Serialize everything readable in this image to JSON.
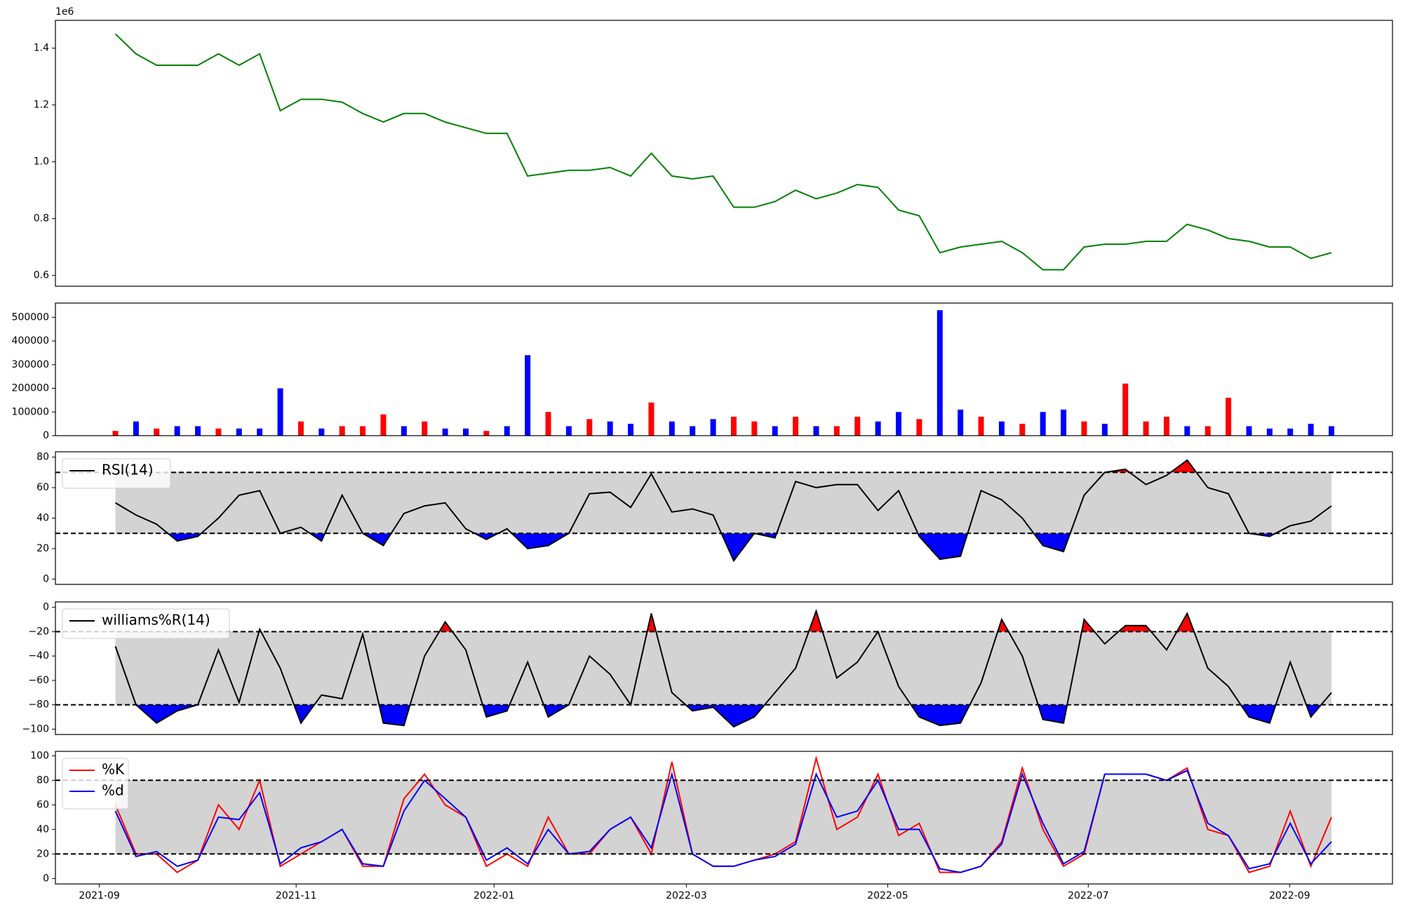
{
  "chart_data": [
    {
      "type": "line",
      "offset_label": "1e6",
      "ylim": [
        0.562,
        1.498
      ],
      "yticks": [
        0.6,
        0.8,
        {
          "value": 1,
          "label": "1.0"
        },
        1.2,
        1.4
      ],
      "xlim": [
        -2.91,
        61.96
      ],
      "series": [
        {
          "color": "#008000",
          "values": [
            1.45,
            1.38,
            1.34,
            1.34,
            1.34,
            1.38,
            1.34,
            1.38,
            1.18,
            1.22,
            1.22,
            1.21,
            1.17,
            1.14,
            1.17,
            1.17,
            1.14,
            1.12,
            1.1,
            1.1,
            0.95,
            0.96,
            0.97,
            0.97,
            0.98,
            0.95,
            1.03,
            0.95,
            0.94,
            0.95,
            0.84,
            0.84,
            0.86,
            0.9,
            0.87,
            0.89,
            0.92,
            0.91,
            0.83,
            0.81,
            0.68,
            0.7,
            0.71,
            0.72,
            0.68,
            0.62,
            0.62,
            0.7,
            0.71,
            0.71,
            0.72,
            0.72,
            0.78,
            0.76,
            0.73,
            0.72,
            0.7,
            0.7,
            0.66,
            0.68
          ]
        }
      ]
    },
    {
      "type": "bar",
      "ylim": [
        0,
        560000
      ],
      "yticks": [
        0,
        100000,
        200000,
        300000,
        400000,
        500000
      ],
      "xlim": [
        -2.91,
        61.96
      ],
      "values": [
        20000,
        60000,
        30000,
        40000,
        40000,
        30000,
        30000,
        30000,
        200000,
        60000,
        30000,
        40000,
        40000,
        90000,
        40000,
        60000,
        30000,
        30000,
        20000,
        40000,
        340000,
        100000,
        40000,
        70000,
        60000,
        50000,
        140000,
        60000,
        40000,
        70000,
        80000,
        60000,
        40000,
        80000,
        40000,
        40000,
        80000,
        60000,
        100000,
        70000,
        530000,
        110000,
        80000,
        60000,
        50000,
        100000,
        110000,
        60000,
        50000,
        220000,
        60000,
        80000,
        40000,
        40000,
        160000,
        40000,
        30000,
        30000,
        50000,
        40000
      ],
      "colors": [
        "red",
        "blue",
        "red",
        "blue",
        "blue",
        "red",
        "blue",
        "blue",
        "blue",
        "red",
        "blue",
        "red",
        "red",
        "red",
        "blue",
        "red",
        "blue",
        "blue",
        "red",
        "blue",
        "blue",
        "red",
        "blue",
        "red",
        "blue",
        "blue",
        "red",
        "blue",
        "blue",
        "blue",
        "red",
        "red",
        "blue",
        "red",
        "blue",
        "red",
        "red",
        "blue",
        "blue",
        "red",
        "blue",
        "blue",
        "red",
        "blue",
        "red",
        "blue",
        "blue",
        "red",
        "blue",
        "red",
        "red",
        "red",
        "blue",
        "red",
        "red",
        "blue",
        "blue",
        "blue",
        "blue",
        "blue"
      ]
    },
    {
      "type": "line",
      "legend": "upper left",
      "ylim": [
        -3.5,
        83.5
      ],
      "yticks": [
        0,
        20,
        40,
        60,
        80
      ],
      "xlim": [
        -2.91,
        61.96
      ],
      "bands": [
        30,
        70
      ],
      "band_color": "#d3d3d3",
      "fill_below": "blue",
      "fill_above": "red",
      "series": [
        {
          "name": "RSI(14)",
          "color": "#000000",
          "values": [
            50,
            42,
            36,
            25,
            28,
            40,
            55,
            58,
            30,
            34,
            25,
            55,
            30,
            22,
            43,
            48,
            50,
            33,
            26,
            33,
            20,
            22,
            30,
            56,
            57,
            47,
            69,
            44,
            46,
            42,
            12,
            30,
            27,
            64,
            60,
            62,
            62,
            45,
            58,
            28,
            13,
            15,
            58,
            52,
            40,
            22,
            18,
            55,
            70,
            72,
            62,
            68,
            78,
            60,
            56,
            30,
            28,
            35,
            38,
            48
          ]
        }
      ]
    },
    {
      "type": "line",
      "legend": "upper left",
      "ylim": [
        -104.4,
        4.4
      ],
      "yticks": [
        {
          "value": -100,
          "label": "−100"
        },
        {
          "value": -80,
          "label": "−80"
        },
        {
          "value": -60,
          "label": "−60"
        },
        {
          "value": -40,
          "label": "−40"
        },
        {
          "value": -20,
          "label": "−20"
        },
        0
      ],
      "xlim": [
        -2.91,
        61.96
      ],
      "bands": [
        -80,
        -20
      ],
      "band_color": "#d3d3d3",
      "fill_below": "blue",
      "fill_above": "red",
      "series": [
        {
          "name": "williams%R(14)",
          "color": "#000000",
          "values": [
            -32,
            -80,
            -95,
            -85,
            -80,
            -35,
            -78,
            -18,
            -50,
            -95,
            -72,
            -75,
            -22,
            -95,
            -97,
            -40,
            -12,
            -35,
            -90,
            -85,
            -45,
            -90,
            -80,
            -40,
            -55,
            -80,
            -5,
            -70,
            -85,
            -82,
            -98,
            -90,
            -70,
            -50,
            -3,
            -58,
            -45,
            -20,
            -65,
            -90,
            -97,
            -95,
            -62,
            -10,
            -40,
            -92,
            -95,
            -10,
            -30,
            -15,
            -15,
            -35,
            -5,
            -50,
            -65,
            -90,
            -95,
            -45,
            -90,
            -70
          ]
        }
      ]
    },
    {
      "type": "line",
      "legend": "upper left",
      "ylim": [
        -4.4,
        103.6
      ],
      "yticks": [
        0,
        20,
        40,
        60,
        80,
        100
      ],
      "xlim": [
        -2.91,
        61.96
      ],
      "bands": [
        20,
        80
      ],
      "band_color": "#d3d3d3",
      "xticks": [
        {
          "value": -0.78,
          "label": "2021-09"
        },
        {
          "value": 8.77,
          "label": "2021-11"
        },
        {
          "value": 18.37,
          "label": "2022-01"
        },
        {
          "value": 27.7,
          "label": "2022-03"
        },
        {
          "value": 37.47,
          "label": "2022-05"
        },
        {
          "value": 47.2,
          "label": "2022-07"
        },
        {
          "value": 56.97,
          "label": "2022-09"
        }
      ],
      "series": [
        {
          "name": "%K",
          "color": "#ff0000",
          "values": [
            60,
            20,
            20,
            5,
            15,
            60,
            40,
            80,
            10,
            20,
            30,
            40,
            10,
            10,
            65,
            85,
            60,
            50,
            10,
            20,
            10,
            50,
            20,
            20,
            40,
            50,
            20,
            95,
            20,
            10,
            10,
            15,
            20,
            30,
            98,
            40,
            50,
            85,
            35,
            45,
            5,
            5,
            10,
            30,
            90,
            40,
            10,
            20,
            85,
            85,
            85,
            80,
            90,
            40,
            35,
            5,
            10,
            55,
            10,
            50
          ]
        },
        {
          "name": "%d",
          "color": "#0000ff",
          "values": [
            55,
            18,
            22,
            10,
            15,
            50,
            48,
            70,
            12,
            25,
            30,
            40,
            12,
            10,
            55,
            80,
            65,
            50,
            15,
            25,
            12,
            40,
            20,
            22,
            40,
            50,
            25,
            85,
            20,
            10,
            10,
            15,
            18,
            28,
            85,
            50,
            55,
            80,
            40,
            40,
            8,
            5,
            10,
            28,
            85,
            45,
            12,
            22,
            85,
            85,
            85,
            80,
            88,
            45,
            35,
            8,
            12,
            45,
            12,
            30
          ]
        }
      ]
    }
  ]
}
